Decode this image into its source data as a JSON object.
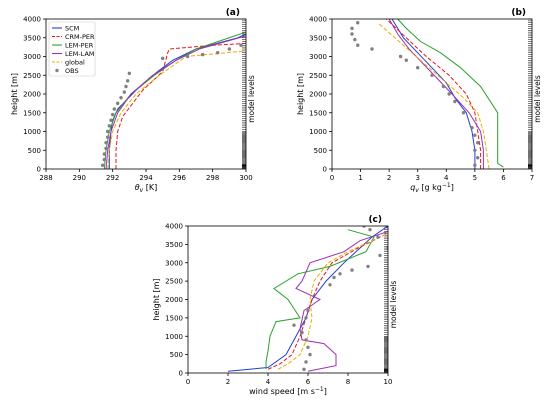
{
  "chart_data": [
    {
      "type": "line",
      "panel_label": "(a)",
      "xlabel": "θv [K]",
      "ylabel": "height [m]",
      "right_label": "model levels",
      "xlim": [
        288,
        300
      ],
      "ylim": [
        0,
        4000
      ],
      "xticks": [
        288,
        290,
        292,
        294,
        296,
        298,
        300
      ],
      "yticks": [
        0,
        500,
        1000,
        1500,
        2000,
        2500,
        3000,
        3500,
        4000
      ],
      "legend": {
        "placement": "top-left"
      },
      "series": [
        {
          "name": "SCM",
          "color": "#1f3fd6",
          "dash": "",
          "x": [
            291.8,
            291.8,
            291.9,
            292.0,
            292.3,
            293.4,
            294.7,
            295.6,
            297.0,
            299.5,
            300.0
          ],
          "y": [
            0,
            500,
            1000,
            1300,
            1600,
            2100,
            2600,
            2900,
            3200,
            3500,
            3600
          ]
        },
        {
          "name": "CRM-PER",
          "color": "#e8141e",
          "dash": "4,2",
          "x": [
            292.2,
            292.2,
            292.3,
            292.6,
            293.8,
            295.0,
            295.3,
            295.4,
            298.0,
            300.0
          ],
          "y": [
            0,
            500,
            1000,
            1400,
            2100,
            2600,
            3100,
            3200,
            3300,
            3350
          ]
        },
        {
          "name": "LEM-PER",
          "color": "#2ca02c",
          "dash": "",
          "x": [
            291.5,
            291.6,
            291.8,
            292.2,
            293.1,
            294.5,
            295.8,
            297.0,
            300.0
          ],
          "y": [
            0,
            500,
            1000,
            1500,
            2000,
            2500,
            2900,
            3200,
            3650
          ]
        },
        {
          "name": "LEM-LAM",
          "color": "#9932b4",
          "dash": "",
          "x": [
            291.6,
            291.7,
            291.9,
            292.3,
            293.1,
            294.4,
            295.8,
            297.2,
            300.0
          ],
          "y": [
            0,
            500,
            1000,
            1500,
            2000,
            2500,
            2900,
            3200,
            3550
          ]
        },
        {
          "name": "global",
          "color": "#f2a900",
          "dash": "4,2",
          "x": [
            291.7,
            291.8,
            292.0,
            292.5,
            293.4,
            294.8,
            296.4,
            300.0
          ],
          "y": [
            0,
            500,
            1000,
            1500,
            2000,
            2500,
            3000,
            3150
          ]
        },
        {
          "name": "OBS",
          "color": "#808080",
          "marker": true,
          "x": [
            291.4,
            291.5,
            291.5,
            291.6,
            291.6,
            291.7,
            291.7,
            291.8,
            291.9,
            292.0,
            292.1,
            292.3,
            292.5,
            292.7,
            292.8,
            292.9,
            293.0,
            295.0,
            296.5,
            297.4,
            298.3,
            299.0,
            299.7
          ],
          "y": [
            100,
            250,
            400,
            550,
            700,
            850,
            1000,
            1150,
            1300,
            1450,
            1600,
            1750,
            1900,
            2050,
            2200,
            2350,
            2550,
            2950,
            3000,
            3050,
            3100,
            3200,
            3300
          ]
        }
      ]
    },
    {
      "type": "line",
      "panel_label": "(b)",
      "xlabel": "qv [g kg⁻¹]",
      "ylabel": "height [m]",
      "right_label": "model levels",
      "xlim": [
        0,
        7
      ],
      "ylim": [
        0,
        4000
      ],
      "xticks": [
        0,
        1,
        2,
        3,
        4,
        5,
        6,
        7
      ],
      "yticks": [
        0,
        500,
        1000,
        1500,
        2000,
        2500,
        3000,
        3500,
        4000
      ],
      "series": [
        {
          "name": "SCM",
          "color": "#1f3fd6",
          "dash": "",
          "x": [
            5.0,
            5.0,
            4.9,
            4.7,
            4.3,
            4.0,
            3.5,
            3.0,
            2.5,
            2.1
          ],
          "y": [
            0,
            500,
            1000,
            1500,
            1900,
            2300,
            2700,
            3100,
            3500,
            4000
          ]
        },
        {
          "name": "CRM-PER",
          "color": "#e8141e",
          "dash": "4,2",
          "x": [
            5.2,
            5.2,
            5.1,
            5.0,
            4.7,
            4.1,
            3.3,
            2.6,
            1.9
          ],
          "y": [
            0,
            500,
            1000,
            1500,
            2000,
            2500,
            3000,
            3500,
            4000
          ]
        },
        {
          "name": "LEM-PER",
          "color": "#2ca02c",
          "dash": "",
          "x": [
            6.0,
            5.8,
            5.8,
            5.8,
            5.2,
            4.5,
            3.8,
            3.1,
            2.6,
            2.3
          ],
          "y": [
            50,
            150,
            500,
            1500,
            2200,
            2700,
            3100,
            3400,
            3750,
            4000
          ]
        },
        {
          "name": "LEM-LAM",
          "color": "#9932b4",
          "dash": "",
          "x": [
            5.3,
            5.3,
            5.2,
            4.8,
            4.2,
            3.7,
            3.2,
            2.7,
            2.3,
            2.0
          ],
          "y": [
            0,
            500,
            1000,
            1500,
            2000,
            2400,
            2800,
            3200,
            3600,
            4000
          ]
        },
        {
          "name": "global",
          "color": "#f2a900",
          "dash": "4,2",
          "x": [
            5.5,
            5.4,
            5.3,
            5.1,
            4.6,
            4.0,
            3.4,
            2.8,
            2.2,
            1.6
          ],
          "y": [
            0,
            500,
            1000,
            1500,
            1900,
            2300,
            2700,
            3100,
            3500,
            3900
          ]
        },
        {
          "name": "OBS",
          "color": "#808080",
          "marker": true,
          "x": [
            5.0,
            5.1,
            5.0,
            5.1,
            5.0,
            4.9,
            4.6,
            4.3,
            4.1,
            3.9,
            3.5,
            3.0,
            2.6,
            2.4,
            1.4,
            0.9,
            0.8,
            0.7,
            0.7,
            0.9
          ],
          "y": [
            100,
            300,
            500,
            700,
            900,
            1100,
            1500,
            1800,
            2000,
            2200,
            2500,
            2700,
            2900,
            3000,
            3200,
            3300,
            3450,
            3600,
            3750,
            3900
          ]
        }
      ]
    },
    {
      "type": "line",
      "panel_label": "(c)",
      "xlabel": "wind speed [m s⁻¹]",
      "ylabel": "height [m]",
      "right_label": "model levels",
      "xlim": [
        0,
        10
      ],
      "ylim": [
        0,
        4000
      ],
      "xticks": [
        0,
        2,
        4,
        6,
        8,
        10
      ],
      "yticks": [
        0,
        500,
        1000,
        1500,
        2000,
        2500,
        3000,
        3500,
        4000
      ],
      "series": [
        {
          "name": "SCM",
          "color": "#1f3fd6",
          "dash": "",
          "x": [
            2.0,
            4.0,
            4.9,
            5.4,
            5.9,
            6.2,
            6.9,
            7.8,
            8.4,
            9.2,
            10.0
          ],
          "y": [
            50,
            150,
            500,
            1000,
            1500,
            2000,
            2500,
            3000,
            3300,
            3700,
            4000
          ]
        },
        {
          "name": "CRM-PER",
          "color": "#e8141e",
          "dash": "4,2",
          "x": [
            4.0,
            4.6,
            5.2,
            5.6,
            5.9,
            6.2,
            6.6,
            7.2,
            8.5,
            10.0
          ],
          "y": [
            100,
            250,
            500,
            1000,
            1500,
            2000,
            2500,
            3000,
            3400,
            3800
          ]
        },
        {
          "name": "LEM-PER",
          "color": "#2ca02c",
          "dash": "",
          "x": [
            3.9,
            3.9,
            4.0,
            4.1,
            4.4,
            5.6,
            5.0,
            4.3,
            5.5,
            7.1,
            8.9,
            9.3,
            8.0
          ],
          "y": [
            100,
            300,
            600,
            1000,
            1400,
            1500,
            2000,
            2300,
            2700,
            2900,
            3300,
            3700,
            3900
          ]
        },
        {
          "name": "LEM-LAM",
          "color": "#9932b4",
          "dash": "",
          "x": [
            6.0,
            7.4,
            7.4,
            6.8,
            5.7,
            5.6,
            5.8,
            6.6,
            5.4,
            5.7,
            6.1,
            7.8,
            8.6,
            10.0
          ],
          "y": [
            50,
            200,
            500,
            800,
            900,
            1200,
            1700,
            2000,
            2300,
            2500,
            3000,
            3300,
            3600,
            3850
          ]
        },
        {
          "name": "global",
          "color": "#f2a900",
          "dash": "4,2",
          "x": [
            4.5,
            5.0,
            5.6,
            6.0,
            6.2,
            6.1,
            6.3,
            7.0,
            8.0,
            9.2,
            10.0
          ],
          "y": [
            100,
            250,
            500,
            1000,
            1500,
            2000,
            2500,
            3000,
            3300,
            3600,
            3800
          ]
        },
        {
          "name": "OBS",
          "color": "#808080",
          "marker": true,
          "x": [
            5.8,
            5.9,
            6.1,
            6.0,
            5.9,
            5.7,
            5.3,
            5.9,
            6.0,
            7.1,
            7.3,
            7.6,
            8.2,
            9.0,
            9.6,
            10.0,
            9.5,
            9.1,
            8.8
          ],
          "y": [
            100,
            300,
            500,
            700,
            900,
            1100,
            1300,
            1500,
            1700,
            2400,
            2600,
            2700,
            2800,
            2900,
            3200,
            3400,
            3700,
            3900,
            4000
          ]
        }
      ]
    }
  ]
}
